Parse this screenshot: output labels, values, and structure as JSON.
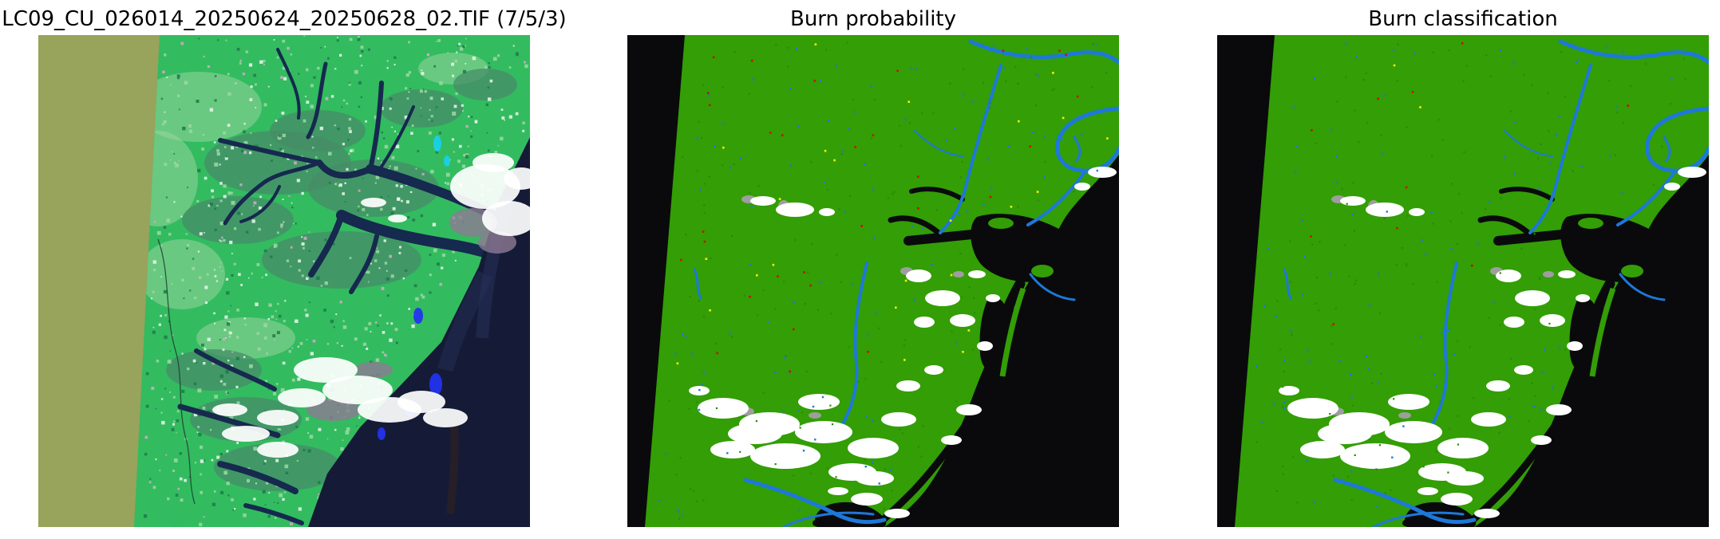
{
  "figure": {
    "background_color": "#ffffff",
    "title_color": "#000000"
  },
  "panels": [
    {
      "title": "LC09_CU_026014_20250624_20250628_02.TIF (7/5/3)",
      "kind": "false_color_composite"
    },
    {
      "title": "Burn probability",
      "kind": "classified_raster"
    },
    {
      "title": "Burn classification",
      "kind": "classified_raster"
    }
  ],
  "colors": {
    "scene_edge_khaki": "#98a35c",
    "vegetation_bright_green": "#33bb60",
    "vegetation_pale_green": "#9fd8a2",
    "marsh_green": "#478c68",
    "river_navy": "#16294e",
    "ocean_dark_navy": "#151b36",
    "ocean_streak_blue": "#27345e",
    "ocean_streak_brown": "#38231a",
    "cloud_white": "#ffffff",
    "cloud_haze_purple": "#8d7b93",
    "cloud_shadow_gray": "#9e9e9e",
    "nodata_black": "#0a0a0c",
    "class_vegetation_green": "#339e06",
    "class_vegetation_dark_green": "#2a8a04",
    "class_water_blue": "#1e78d8",
    "class_burn_red": "#cc1100",
    "class_burn_yellow": "#ffee00",
    "accent_bright_blue": "#2233ee",
    "accent_cyan": "#19d0e8",
    "speckle_pink": "#d9a8c8",
    "speckle_white": "#eef6ee"
  },
  "speckles": {
    "probability": {
      "red": 30,
      "yellow": 24,
      "blue": 95,
      "dark_green": 130
    },
    "classification": {
      "red": 10,
      "yellow": 2,
      "blue": 85,
      "dark_green": 130
    }
  }
}
